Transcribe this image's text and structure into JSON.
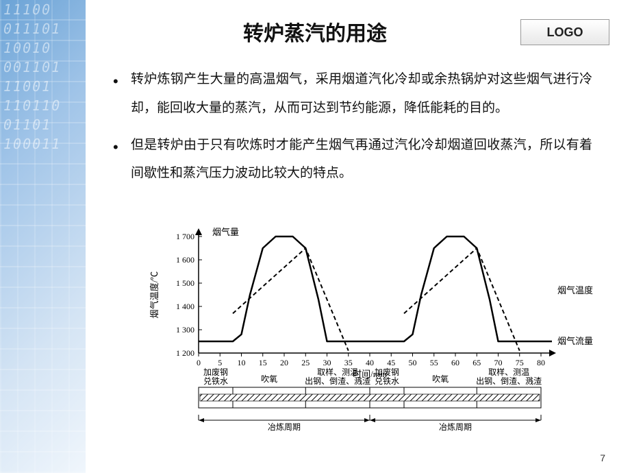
{
  "logo": "LOGO",
  "title": "转炉蒸汽的用途",
  "bullets": [
    "转炉炼钢产生大量的高温烟气，采用烟道汽化冷却或余热锅炉对这些烟气进行冷却，能回收大量的蒸汽，从而可达到节约能源，降低能耗的目的。",
    "但是转炉由于只有吹炼时才能产生烟气再通过汽化冷却烟道回收蒸汽，所以有着间歇性和蒸汽压力波动比较大的特点。"
  ],
  "page": "7",
  "chart": {
    "type": "line",
    "background_color": "#ffffff",
    "axis_color": "#000000",
    "grid_color": "#000000",
    "solid_line_color": "#000000",
    "dashed_line_color": "#000000",
    "line_width_solid": 2.5,
    "line_width_dashed": 2,
    "y_axis_label_top": "烟气量",
    "y_axis_label_vert": "烟气温度/℃",
    "x_axis_label": "时间/min",
    "legend_temp": "烟气温度",
    "legend_flow": "烟气流量",
    "xlim": [
      0,
      80
    ],
    "xtick_step": 5,
    "xticks": [
      0,
      5,
      10,
      15,
      20,
      25,
      30,
      35,
      40,
      45,
      50,
      55,
      60,
      65,
      70,
      75,
      80
    ],
    "ylim": [
      1200,
      1700
    ],
    "ytick_step": 100,
    "yticks": [
      1200,
      1300,
      1400,
      1500,
      1600,
      1700
    ],
    "flow_series": {
      "x": [
        0,
        8,
        10,
        12,
        15,
        18,
        22,
        25,
        28,
        30,
        40,
        48,
        50,
        52,
        55,
        58,
        62,
        65,
        68,
        70,
        80
      ],
      "y": [
        1250,
        1250,
        1280,
        1450,
        1650,
        1700,
        1700,
        1650,
        1430,
        1250,
        1250,
        1250,
        1280,
        1450,
        1650,
        1700,
        1700,
        1650,
        1430,
        1250,
        1250
      ],
      "style": "solid"
    },
    "temp_series": {
      "segments": [
        {
          "x": [
            8,
            25,
            35
          ],
          "y": [
            1370,
            1650,
            1210
          ],
          "style": "dashed"
        },
        {
          "x": [
            48,
            65,
            75
          ],
          "y": [
            1370,
            1650,
            1210
          ],
          "style": "dashed"
        }
      ]
    },
    "timeline_phases": [
      "加废钢\n兑铁水",
      "吹氧",
      "取样、测温\n出钢、倒渣、溅渣",
      "加废钢\n兑铁水",
      "吹氧",
      "取样、测温\n出钢、倒渣、溅渣"
    ],
    "timeline_boundaries_min": [
      0,
      8,
      25,
      40,
      48,
      65,
      80
    ],
    "timeline_cycle_label": "冶炼周期",
    "timeline_colors": {
      "border": "#000000",
      "hatch": "#000000",
      "fill": "#ffffff"
    },
    "fonts": {
      "axis_pt": 12,
      "label_pt": 13,
      "small_pt": 12
    }
  }
}
